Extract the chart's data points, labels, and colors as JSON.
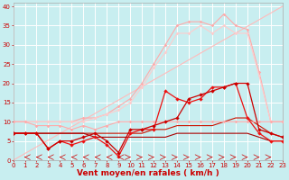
{
  "title": "",
  "xlabel": "Vent moyen/en rafales ( km/h )",
  "bg_color": "#c8eef0",
  "grid_color": "#ffffff",
  "x_ticks": [
    0,
    1,
    2,
    3,
    4,
    5,
    6,
    7,
    8,
    9,
    10,
    11,
    12,
    13,
    14,
    15,
    16,
    17,
    18,
    19,
    20,
    21,
    22,
    23
  ],
  "y_ticks": [
    0,
    5,
    10,
    15,
    20,
    25,
    30,
    35,
    40
  ],
  "xlim": [
    0,
    23
  ],
  "ylim": [
    0,
    41
  ],
  "series": [
    {
      "x": [
        0,
        1,
        2,
        3,
        4,
        5,
        6,
        7,
        8,
        9,
        10,
        11,
        12,
        13,
        14,
        15,
        16,
        17,
        18,
        19,
        20,
        21,
        22,
        23
      ],
      "y": [
        0,
        1.74,
        3.48,
        5.22,
        6.96,
        8.7,
        10.43,
        12.17,
        13.91,
        15.65,
        17.39,
        19.13,
        20.87,
        22.61,
        24.35,
        26.09,
        27.83,
        29.57,
        31.3,
        33.04,
        34.78,
        36.52,
        38.26,
        40
      ],
      "color": "#ffbbbb",
      "linewidth": 0.8,
      "marker": null,
      "markersize": 0,
      "linestyle": "-"
    },
    {
      "x": [
        0,
        1,
        2,
        3,
        4,
        5,
        6,
        7,
        8,
        9,
        10,
        11,
        12,
        13,
        14,
        15,
        16,
        17,
        18,
        19,
        20,
        21,
        22,
        23
      ],
      "y": [
        10,
        10,
        10,
        10,
        10,
        10,
        11,
        11,
        12,
        14,
        16,
        20,
        25,
        30,
        35,
        36,
        36,
        35,
        38,
        35,
        34,
        23,
        10,
        10
      ],
      "color": "#ffaaaa",
      "linewidth": 0.8,
      "marker": "D",
      "markersize": 1.8,
      "linestyle": "-"
    },
    {
      "x": [
        0,
        1,
        2,
        3,
        4,
        5,
        6,
        7,
        8,
        9,
        10,
        11,
        12,
        13,
        14,
        15,
        16,
        17,
        18,
        19,
        20,
        21,
        22,
        23
      ],
      "y": [
        10,
        10,
        10,
        10,
        10,
        10,
        10,
        11,
        12,
        13,
        15,
        19,
        24,
        28,
        33,
        33,
        35,
        33,
        35,
        33,
        33,
        22,
        10,
        10
      ],
      "color": "#ffcccc",
      "linewidth": 0.8,
      "marker": "D",
      "markersize": 1.8,
      "linestyle": "-"
    },
    {
      "x": [
        0,
        1,
        2,
        3,
        4,
        5,
        6,
        7,
        8,
        9,
        10,
        11,
        12,
        13,
        14,
        15,
        16,
        17,
        18,
        19,
        20,
        21,
        22,
        23
      ],
      "y": [
        10,
        10,
        9,
        9,
        9,
        8,
        9,
        8,
        9,
        10,
        10,
        10,
        10,
        10,
        10,
        10,
        10,
        10,
        10,
        10,
        10,
        10,
        10,
        10
      ],
      "color": "#ffaaaa",
      "linewidth": 0.8,
      "marker": "D",
      "markersize": 1.8,
      "linestyle": "-"
    },
    {
      "x": [
        0,
        1,
        2,
        3,
        4,
        5,
        6,
        7,
        8,
        9,
        10,
        11,
        12,
        13,
        14,
        15,
        16,
        17,
        18,
        19,
        20,
        21,
        22,
        23
      ],
      "y": [
        7,
        7,
        7,
        3,
        5,
        4,
        5,
        6,
        4,
        1,
        7,
        8,
        8,
        18,
        16,
        15,
        16,
        19,
        19,
        20,
        11,
        7,
        5,
        5
      ],
      "color": "#ee1111",
      "linewidth": 0.9,
      "marker": "D",
      "markersize": 2.2,
      "linestyle": "-"
    },
    {
      "x": [
        0,
        1,
        2,
        3,
        4,
        5,
        6,
        7,
        8,
        9,
        10,
        11,
        12,
        13,
        14,
        15,
        16,
        17,
        18,
        19,
        20,
        21,
        22,
        23
      ],
      "y": [
        7,
        7,
        7,
        3,
        5,
        5,
        6,
        7,
        5,
        2,
        8,
        8,
        9,
        10,
        11,
        16,
        17,
        18,
        19,
        20,
        20,
        8,
        7,
        6
      ],
      "color": "#cc0000",
      "linewidth": 0.9,
      "marker": "D",
      "markersize": 2.2,
      "linestyle": "-"
    },
    {
      "x": [
        0,
        1,
        2,
        3,
        4,
        5,
        6,
        7,
        8,
        9,
        10,
        11,
        12,
        13,
        14,
        15,
        16,
        17,
        18,
        19,
        20,
        21,
        22,
        23
      ],
      "y": [
        7,
        7,
        7,
        7,
        7,
        7,
        7,
        7,
        7,
        7,
        7,
        7,
        8,
        8,
        9,
        9,
        9,
        9,
        10,
        11,
        11,
        9,
        7,
        6
      ],
      "color": "#cc1100",
      "linewidth": 0.8,
      "marker": null,
      "markersize": 0,
      "linestyle": "-"
    },
    {
      "x": [
        0,
        1,
        2,
        3,
        4,
        5,
        6,
        7,
        8,
        9,
        10,
        11,
        12,
        13,
        14,
        15,
        16,
        17,
        18,
        19,
        20,
        21,
        22,
        23
      ],
      "y": [
        7,
        7,
        7,
        7,
        7,
        7,
        7,
        6,
        6,
        6,
        6,
        6,
        6,
        6,
        7,
        7,
        7,
        7,
        7,
        7,
        7,
        6,
        5,
        5
      ],
      "color": "#aa0000",
      "linewidth": 0.8,
      "marker": null,
      "markersize": 0,
      "linestyle": "-"
    }
  ],
  "arrows_left": [
    0,
    1,
    2,
    3,
    4,
    5,
    6,
    7,
    8,
    9
  ],
  "arrows_right": [
    10,
    11,
    12,
    13,
    14,
    15,
    16,
    17,
    18,
    19,
    20,
    21,
    22,
    23
  ],
  "xlabel_color": "#cc0000",
  "xlabel_fontsize": 6.5,
  "tick_color": "#cc0000",
  "tick_fontsize": 5
}
